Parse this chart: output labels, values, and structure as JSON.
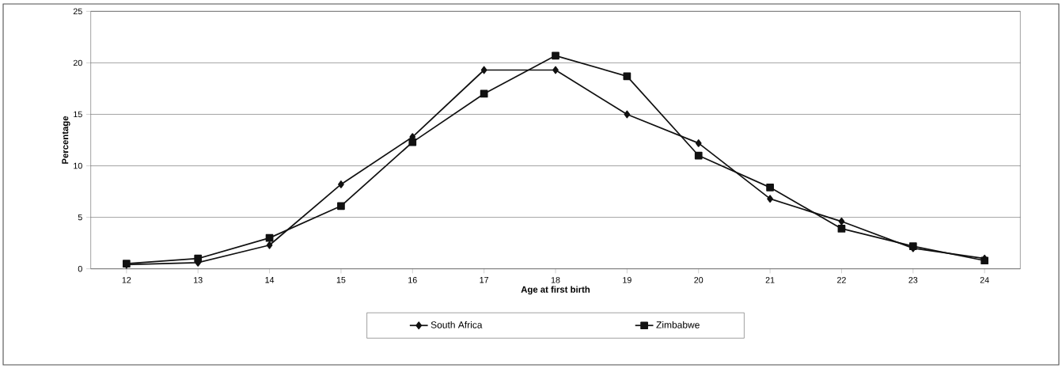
{
  "chart_data": {
    "type": "line",
    "xlabel": "Age at first birth",
    "ylabel": "Percentage",
    "categories": [
      "12",
      "13",
      "14",
      "15",
      "16",
      "17",
      "18",
      "19",
      "20",
      "21",
      "22",
      "23",
      "24"
    ],
    "series": [
      {
        "name": "South Africa",
        "color": "#111111",
        "marker": "diamond",
        "values": [
          0.4,
          0.6,
          2.3,
          8.2,
          12.8,
          19.3,
          19.3,
          15.0,
          12.2,
          6.8,
          4.6,
          2.0,
          1.0
        ]
      },
      {
        "name": "Zimbabwe",
        "color": "#111111",
        "marker": "square",
        "values": [
          0.5,
          1.0,
          3.0,
          6.1,
          12.3,
          17.0,
          20.7,
          18.7,
          11.0,
          7.9,
          3.9,
          2.2,
          0.8
        ]
      }
    ],
    "ylim": [
      0,
      25
    ],
    "yticks": [
      0,
      5,
      10,
      15,
      20,
      25
    ],
    "grid": "y",
    "legend": "bottom",
    "line_style": "solid"
  }
}
